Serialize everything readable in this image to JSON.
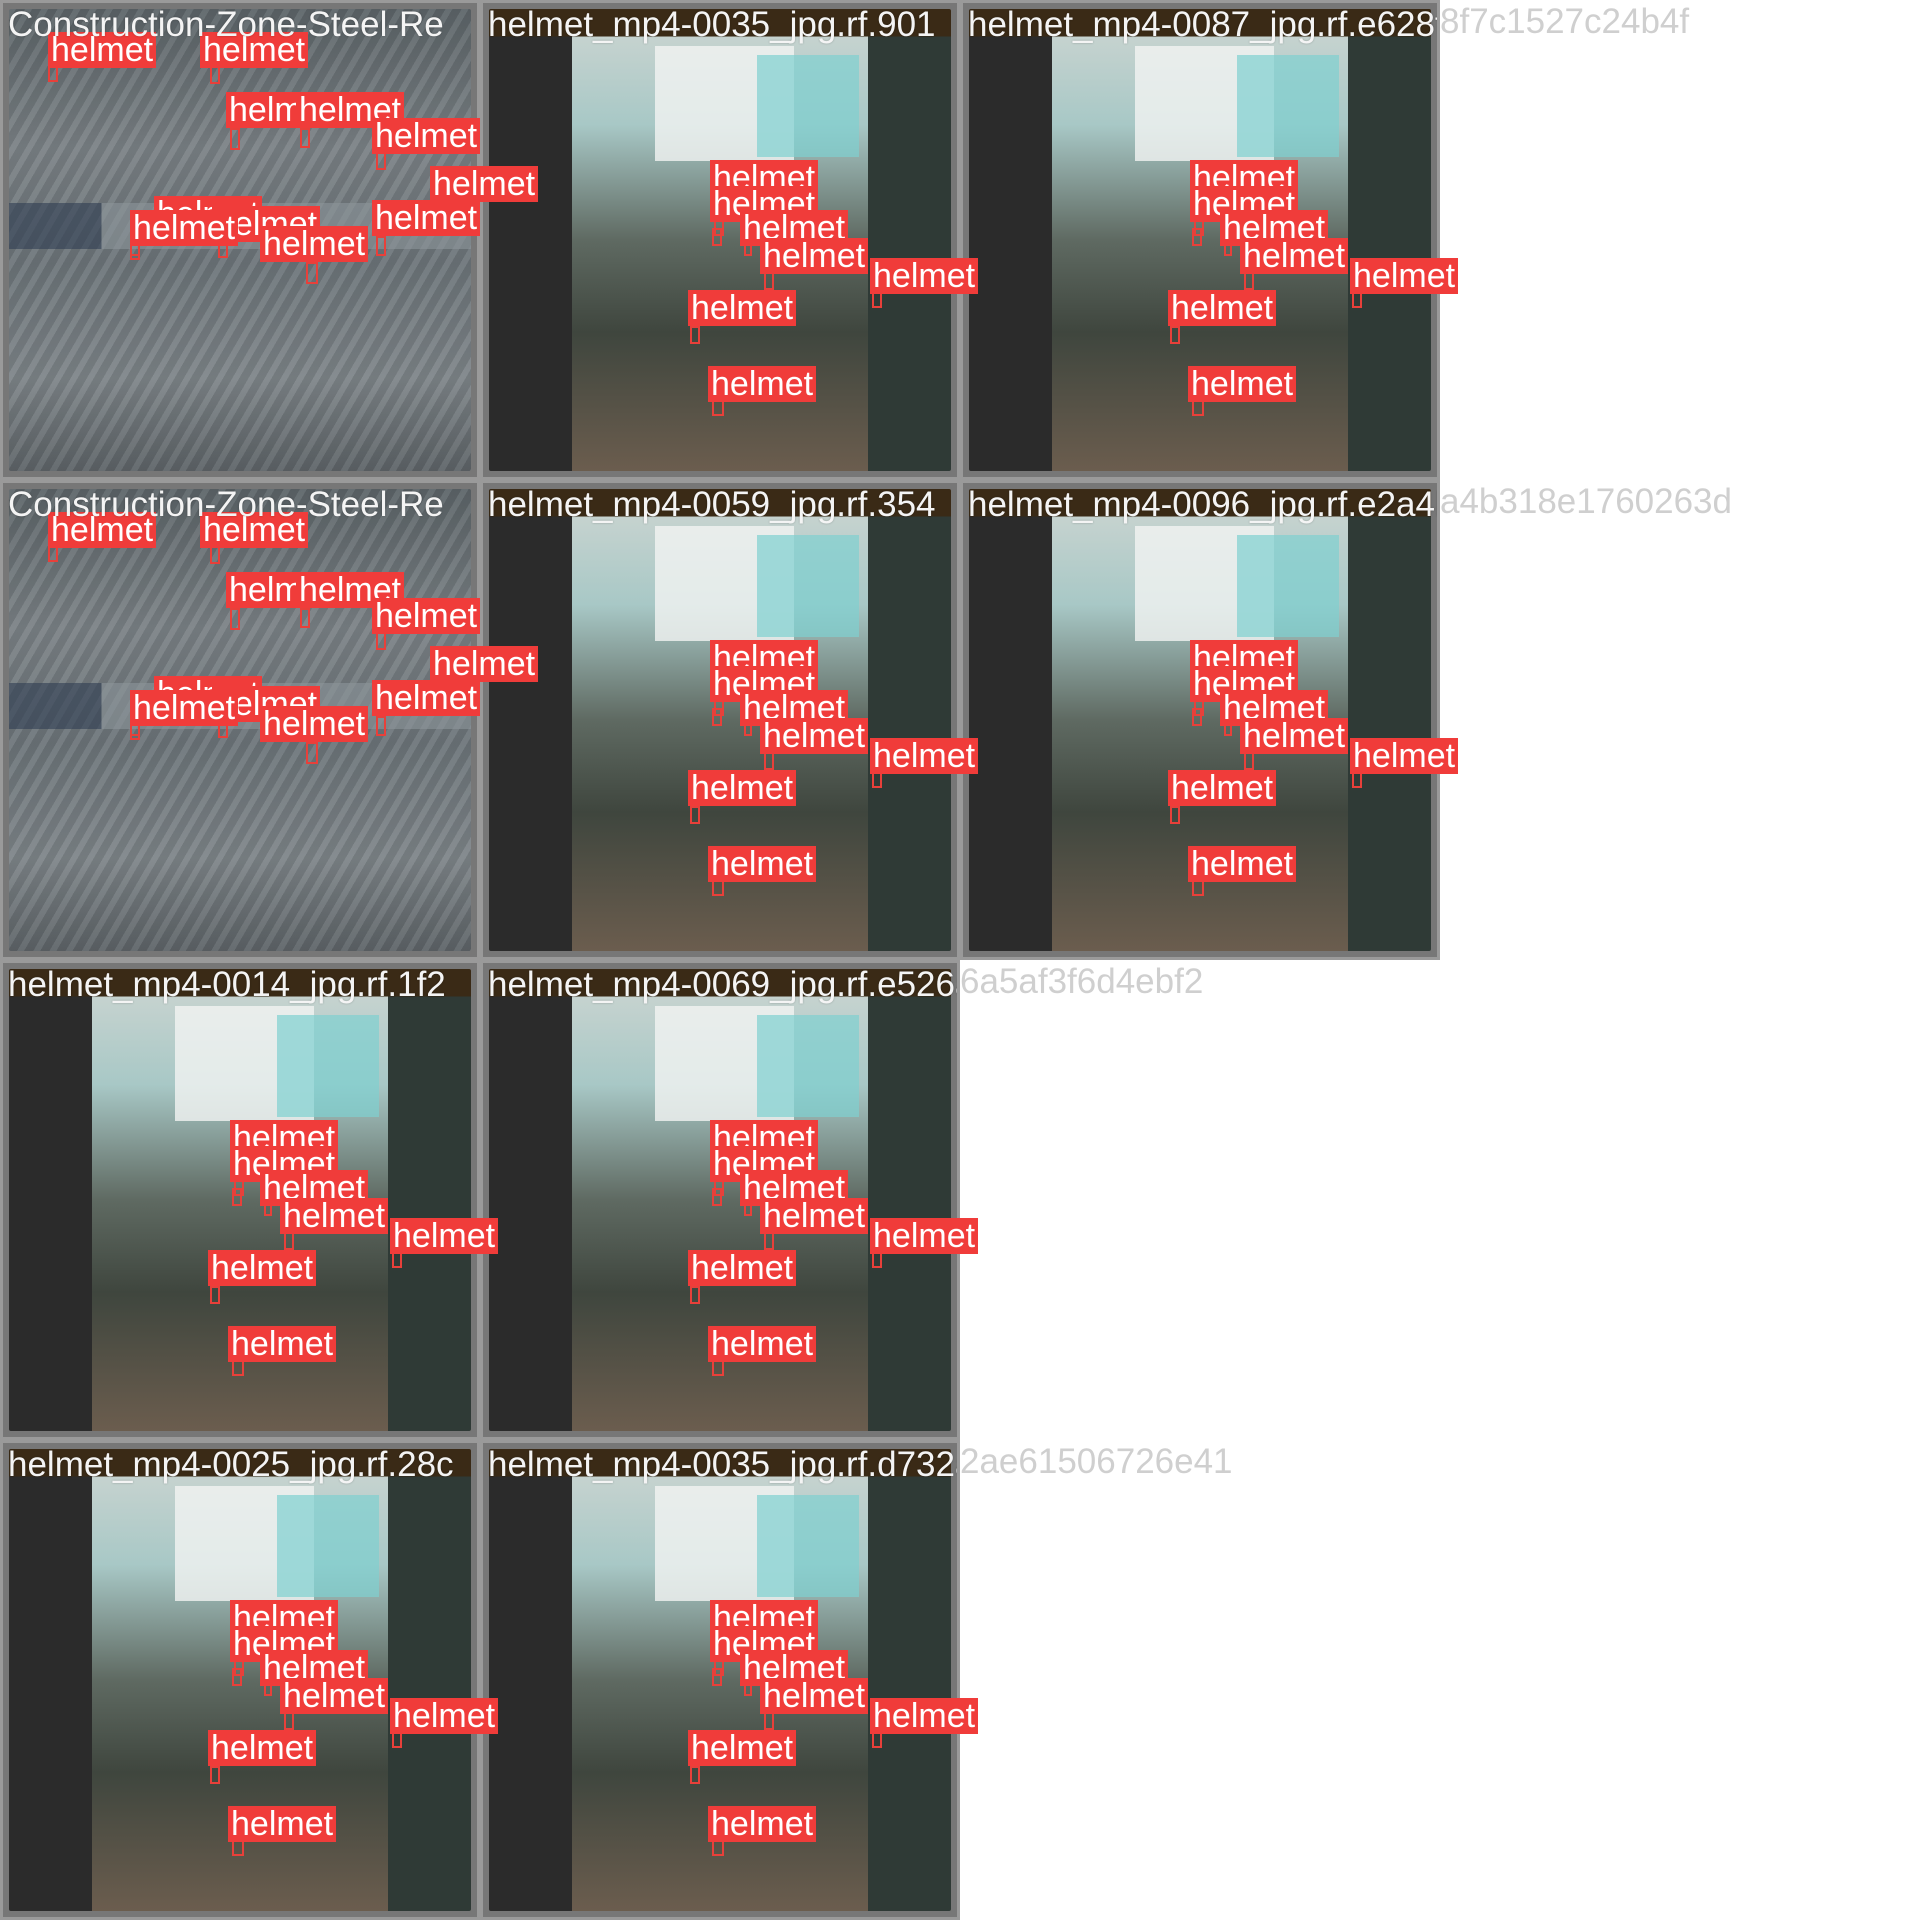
{
  "titles": {
    "t1": "Construction-Zone-Steel-Re",
    "t2": "helmet_mp4-0035_jpg.rf.901",
    "t3": "helmet_mp4-0087_jpg.rf.e628f7c1527c24b4f",
    "t4": "Construction-Zone-Steel-Re",
    "t5": "helmet_mp4-0059_jpg.rf.354",
    "t6": "helmet_mp4-0096_jpg.rf.e2a4b318e1760263d",
    "t7": "helmet_mp4-0014_jpg.rf.1f2",
    "t8": "helmet_mp4-0069_jpg.rf.e526a5af3f6d4ebf2",
    "t10": "helmet_mp4-0025_jpg.rf.28c",
    "t11": "helmet_mp4-0035_jpg.rf.d732ae61506726e41"
  },
  "overflow": {
    "t3": "8f7c1527c24b4f",
    "t6": "a4b318e1760263d",
    "t8": "6a5af3f6d4ebf2",
    "t11": "2ae61506726e41"
  },
  "label": "helmet",
  "colors": {
    "box": "#e8403a",
    "label_bg": "#f03c3a",
    "label_text": "#ffffff"
  }
}
